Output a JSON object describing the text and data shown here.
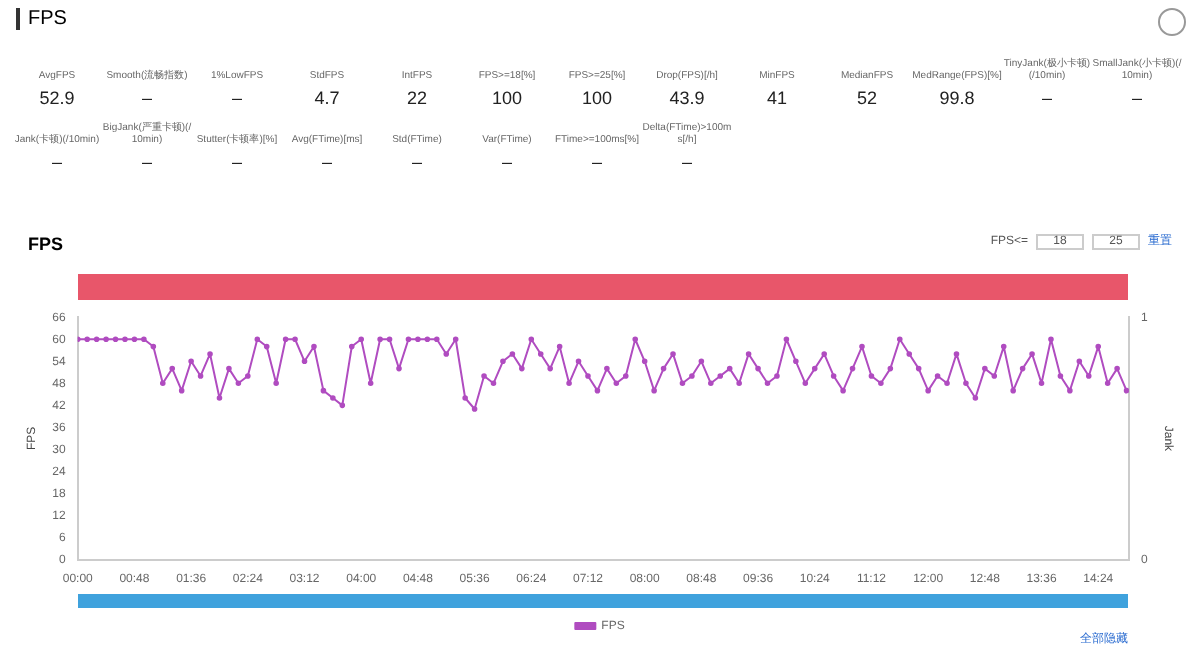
{
  "chart_data": [
    {
      "type": "other",
      "title": "FPS",
      "annotations": [
        "AvgFPS",
        "52.9",
        "Smooth(流畅指数)",
        "–",
        "1%LowFPS",
        "–",
        "StdFPS",
        "4.7",
        "IntFPS",
        "22",
        "FPS>=18[%]",
        "100",
        "FPS>=25[%]",
        "100",
        "Drop(FPS)[/h]",
        "43.9",
        "MinFPS",
        "41",
        "MedianFPS",
        "52",
        "MedRange(FPS)[%]",
        "99.8",
        "TinyJank(极小卡顿)(/10min)",
        "–",
        "SmallJank(小卡顿)(/10min)",
        "–",
        "Jank(卡顿)(/10min)",
        "–",
        "BigJank(严重卡顿)(/10min)",
        "–",
        "Stutter(卡顿率)[%]",
        "–",
        "Avg(FTime)[ms]",
        "–",
        "Std(FTime)",
        "–",
        "Var(FTime)",
        "–",
        "FTime>=100ms[%]",
        "–",
        "Delta(FTime)>100ms[/h]",
        "–"
      ]
    },
    {
      "type": "line",
      "title": "FPS",
      "ylabel": "FPS",
      "y2label": "Jank",
      "annotations": [
        "FPS<=",
        "18",
        "25",
        "重置",
        "全部隐藏"
      ],
      "legend": "bottom",
      "grid": false,
      "marker": "circle",
      "line_style": "solid",
      "xlim": [
        0,
        890
      ],
      "xticks": [
        {
          "value": 0,
          "label": "00:00"
        },
        {
          "value": 48,
          "label": "00:48"
        },
        {
          "value": 96,
          "label": "01:36"
        },
        {
          "value": 144,
          "label": "02:24"
        },
        {
          "value": 192,
          "label": "03:12"
        },
        {
          "value": 240,
          "label": "04:00"
        },
        {
          "value": 288,
          "label": "04:48"
        },
        {
          "value": 336,
          "label": "05:36"
        },
        {
          "value": 384,
          "label": "06:24"
        },
        {
          "value": 432,
          "label": "07:12"
        },
        {
          "value": 480,
          "label": "08:00"
        },
        {
          "value": 528,
          "label": "08:48"
        },
        {
          "value": 576,
          "label": "09:36"
        },
        {
          "value": 624,
          "label": "10:24"
        },
        {
          "value": 672,
          "label": "11:12"
        },
        {
          "value": 720,
          "label": "12:00"
        },
        {
          "value": 768,
          "label": "12:48"
        },
        {
          "value": 816,
          "label": "13:36"
        },
        {
          "value": 864,
          "label": "14:24"
        }
      ],
      "ylim": [
        0,
        66
      ],
      "yticks": [
        0,
        6,
        12,
        18,
        24,
        30,
        36,
        42,
        48,
        54,
        60,
        66
      ],
      "y2lim": [
        0,
        1
      ],
      "y2ticks": [
        0,
        1
      ],
      "x": [
        0,
        8,
        16,
        24,
        32,
        40,
        48,
        56,
        64,
        72,
        80,
        88,
        96,
        104,
        112,
        120,
        128,
        136,
        144,
        152,
        160,
        168,
        176,
        184,
        192,
        200,
        208,
        216,
        224,
        232,
        240,
        248,
        256,
        264,
        272,
        280,
        288,
        296,
        304,
        312,
        320,
        328,
        336,
        344,
        352,
        360,
        368,
        376,
        384,
        392,
        400,
        408,
        416,
        424,
        432,
        440,
        448,
        456,
        464,
        472,
        480,
        488,
        496,
        504,
        512,
        520,
        528,
        536,
        544,
        552,
        560,
        568,
        576,
        584,
        592,
        600,
        608,
        616,
        624,
        632,
        640,
        648,
        656,
        664,
        672,
        680,
        688,
        696,
        704,
        712,
        720,
        728,
        736,
        744,
        752,
        760,
        768,
        776,
        784,
        792,
        800,
        808,
        816,
        824,
        832,
        840,
        848,
        856,
        864,
        872,
        880,
        888
      ],
      "series": [
        {
          "name": "FPS",
          "color": "#b04cc0",
          "values": [
            60,
            60,
            60,
            60,
            60,
            60,
            60,
            60,
            58,
            48,
            52,
            46,
            54,
            50,
            56,
            44,
            52,
            48,
            50,
            60,
            58,
            48,
            60,
            60,
            54,
            58,
            46,
            44,
            42,
            58,
            60,
            48,
            60,
            60,
            52,
            60,
            60,
            60,
            60,
            56,
            60,
            44,
            41,
            50,
            48,
            54,
            56,
            52,
            60,
            56,
            52,
            58,
            48,
            54,
            50,
            46,
            52,
            48,
            50,
            60,
            54,
            46,
            52,
            56,
            48,
            50,
            54,
            48,
            50,
            52,
            48,
            56,
            52,
            48,
            50,
            60,
            54,
            48,
            52,
            56,
            50,
            46,
            52,
            58,
            50,
            48,
            52,
            60,
            56,
            52,
            46,
            50,
            48,
            56,
            48,
            44,
            52,
            50,
            58,
            46,
            52,
            56,
            48,
            60,
            50,
            46,
            54,
            50,
            58,
            48,
            52,
            46
          ]
        }
      ]
    }
  ]
}
